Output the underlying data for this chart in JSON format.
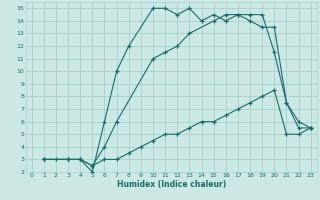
{
  "xlabel": "Humidex (Indice chaleur)",
  "xlim": [
    -0.5,
    23.5
  ],
  "ylim": [
    2,
    15.5
  ],
  "xticks": [
    0,
    1,
    2,
    3,
    4,
    5,
    6,
    7,
    8,
    9,
    10,
    11,
    12,
    13,
    14,
    15,
    16,
    17,
    18,
    19,
    20,
    21,
    22,
    23
  ],
  "yticks": [
    2,
    3,
    4,
    5,
    6,
    7,
    8,
    9,
    10,
    11,
    12,
    13,
    14,
    15
  ],
  "bg_color": "#cce8e5",
  "grid_color": "#a8d0cc",
  "line_color": "#1a6b6b",
  "line1_x": [
    1,
    2,
    3,
    4,
    5,
    6,
    7,
    8,
    10,
    11,
    12,
    13,
    14,
    15,
    16,
    17,
    18,
    19,
    20,
    21,
    22,
    23
  ],
  "line1_y": [
    3,
    3,
    3,
    3,
    2,
    6,
    10,
    12,
    15,
    15,
    14.5,
    15,
    14,
    14.5,
    14,
    14.5,
    14,
    13.5,
    13.5,
    7.5,
    6,
    5.5
  ],
  "line2_x": [
    1,
    3,
    4,
    5,
    6,
    7,
    10,
    11,
    12,
    13,
    15,
    16,
    17,
    18,
    19,
    20,
    21,
    22,
    23
  ],
  "line2_y": [
    3,
    3,
    3,
    2.5,
    4,
    6,
    11,
    11.5,
    12,
    13,
    14,
    14.5,
    14.5,
    14.5,
    14.5,
    11.5,
    7.5,
    5.5,
    5.5
  ],
  "line3_x": [
    1,
    3,
    4,
    5,
    6,
    7,
    8,
    9,
    10,
    11,
    12,
    13,
    14,
    15,
    16,
    17,
    18,
    19,
    20,
    21,
    22,
    23
  ],
  "line3_y": [
    3,
    3,
    3,
    2.5,
    3,
    3,
    3.5,
    4,
    4.5,
    5,
    5,
    5.5,
    6,
    6,
    6.5,
    7,
    7.5,
    8,
    8.5,
    5,
    5,
    5.5
  ]
}
